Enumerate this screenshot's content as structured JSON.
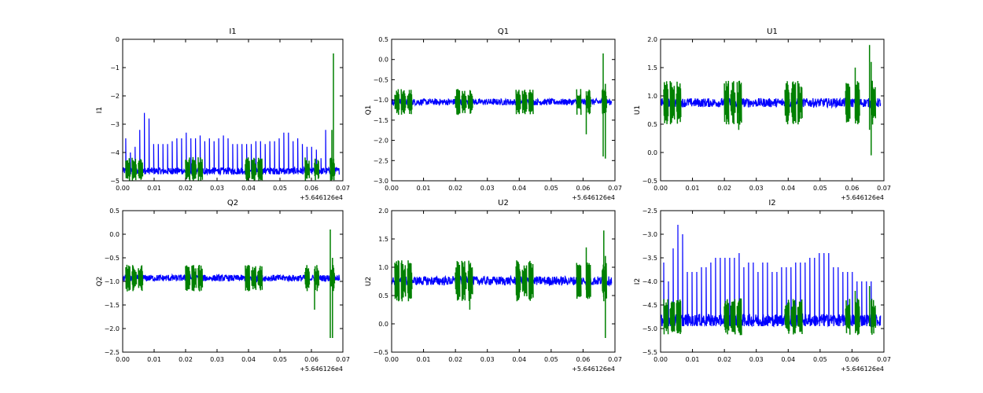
{
  "chart_data": [
    {
      "type": "line",
      "title": "I1",
      "ylabel": "I1",
      "xlabel": "",
      "xlim": [
        0.0,
        0.07
      ],
      "ylim": [
        -5,
        0
      ],
      "xticks": [
        "0.00",
        "0.01",
        "0.02",
        "0.03",
        "0.04",
        "0.05",
        "0.06",
        "0.07"
      ],
      "yticks": [
        "0",
        "−1",
        "−2",
        "−3",
        "−4",
        "−5"
      ],
      "offset_text": "+5.646126e4",
      "series": [
        {
          "name": "blue",
          "color": "#0000ff",
          "baseline": -4.65,
          "noise": 0.12,
          "spike_x": [
            0.001,
            0.0025,
            0.004,
            0.0055,
            0.007,
            0.0085,
            0.01,
            0.0115,
            0.013,
            0.0145,
            0.016,
            0.0175,
            0.019,
            0.0205,
            0.022,
            0.0235,
            0.025,
            0.0265,
            0.028,
            0.0295,
            0.031,
            0.0325,
            0.034,
            0.0355,
            0.037,
            0.0385,
            0.04,
            0.0415,
            0.043,
            0.0445,
            0.046,
            0.0475,
            0.049,
            0.0505,
            0.052,
            0.0535,
            0.055,
            0.0565,
            0.058,
            0.0595,
            0.061,
            0.0625,
            0.064,
            0.0655,
            0.067
          ],
          "spike_y": [
            -3.5,
            -4.0,
            -3.8,
            -3.2,
            -2.6,
            -2.8,
            -3.7,
            -3.7,
            -3.7,
            -3.7,
            -3.6,
            -3.5,
            -3.5,
            -3.3,
            -3.5,
            -3.5,
            -3.4,
            -3.6,
            -3.5,
            -3.6,
            -3.5,
            -3.4,
            -3.5,
            -3.7,
            -3.7,
            -3.7,
            -3.7,
            -3.7,
            -3.6,
            -3.6,
            -3.7,
            -3.6,
            -3.6,
            -3.5,
            -3.3,
            -3.3,
            -3.6,
            -3.5,
            -3.7,
            -3.8,
            -3.8,
            -3.9,
            -4.2,
            -3.2,
            -4.2
          ]
        },
        {
          "name": "green",
          "color": "#008000",
          "baseline": -4.6,
          "clusters": [
            0.001,
            0.003,
            0.005,
            0.02,
            0.022,
            0.024,
            0.039,
            0.041,
            0.043,
            0.058,
            0.061,
            0.066
          ],
          "cluster_amp": 0.35,
          "peaks": [
            {
              "x": 0.0665,
              "min": -4.8,
              "max": -3.2
            },
            {
              "x": 0.067,
              "min": -4.8,
              "max": -0.5
            }
          ]
        }
      ]
    },
    {
      "type": "line",
      "title": "Q1",
      "ylabel": "Q1",
      "xlabel": "",
      "xlim": [
        0.0,
        0.07
      ],
      "ylim": [
        -3.0,
        0.5
      ],
      "xticks": [
        "0.00",
        "0.01",
        "0.02",
        "0.03",
        "0.04",
        "0.05",
        "0.06",
        "0.07"
      ],
      "yticks": [
        "0.5",
        "0.0",
        "−0.5",
        "−1.0",
        "−1.5",
        "−2.0",
        "−2.5",
        "−3.0"
      ],
      "offset_text": "+5.646126e4",
      "series": [
        {
          "name": "blue",
          "color": "#0000ff",
          "baseline": -1.05,
          "noise": 0.08,
          "spike_x": [],
          "spike_y": []
        },
        {
          "name": "green",
          "color": "#008000",
          "baseline": -1.05,
          "clusters": [
            0.001,
            0.003,
            0.005,
            0.02,
            0.022,
            0.024,
            0.039,
            0.041,
            0.043,
            0.058,
            0.061,
            0.066
          ],
          "cluster_amp": 0.25,
          "peaks": [
            {
              "x": 0.061,
              "min": -1.85,
              "max": -0.9
            },
            {
              "x": 0.0663,
              "min": -2.4,
              "max": 0.15
            },
            {
              "x": 0.067,
              "min": -2.45,
              "max": -0.6
            }
          ]
        }
      ]
    },
    {
      "type": "line",
      "title": "U1",
      "ylabel": "U1",
      "xlabel": "",
      "xlim": [
        0.0,
        0.07
      ],
      "ylim": [
        -0.5,
        2.0
      ],
      "xticks": [
        "0.00",
        "0.01",
        "0.02",
        "0.03",
        "0.04",
        "0.05",
        "0.06",
        "0.07"
      ],
      "yticks": [
        "2.0",
        "1.5",
        "1.0",
        "0.5",
        "0.0",
        "−0.5"
      ],
      "offset_text": "+5.646126e4",
      "series": [
        {
          "name": "blue",
          "color": "#0000ff",
          "baseline": 0.88,
          "noise": 0.08,
          "spike_x": [],
          "spike_y": []
        },
        {
          "name": "green",
          "color": "#008000",
          "baseline": 0.88,
          "clusters": [
            0.001,
            0.003,
            0.005,
            0.02,
            0.022,
            0.024,
            0.039,
            0.041,
            0.043,
            0.058,
            0.061,
            0.066
          ],
          "cluster_amp": 0.3,
          "peaks": [
            {
              "x": 0.0245,
              "min": 0.4,
              "max": 1.0
            },
            {
              "x": 0.061,
              "min": 0.6,
              "max": 1.5
            },
            {
              "x": 0.0655,
              "min": 0.4,
              "max": 1.9
            },
            {
              "x": 0.066,
              "min": -0.05,
              "max": 1.6
            }
          ]
        }
      ]
    },
    {
      "type": "line",
      "title": "Q2",
      "ylabel": "Q2",
      "xlabel": "",
      "xlim": [
        0.0,
        0.07
      ],
      "ylim": [
        -2.5,
        0.5
      ],
      "xticks": [
        "0.00",
        "0.01",
        "0.02",
        "0.03",
        "0.04",
        "0.05",
        "0.06",
        "0.07"
      ],
      "yticks": [
        "0.5",
        "0.0",
        "−0.5",
        "−1.0",
        "−1.5",
        "−2.0",
        "−2.5"
      ],
      "offset_text": "+5.646126e4",
      "series": [
        {
          "name": "blue",
          "color": "#0000ff",
          "baseline": -0.93,
          "noise": 0.07,
          "spike_x": [],
          "spike_y": []
        },
        {
          "name": "green",
          "color": "#008000",
          "baseline": -0.93,
          "clusters": [
            0.001,
            0.003,
            0.005,
            0.02,
            0.022,
            0.024,
            0.039,
            0.041,
            0.043,
            0.058,
            0.061,
            0.066
          ],
          "cluster_amp": 0.22,
          "peaks": [
            {
              "x": 0.061,
              "min": -1.6,
              "max": -0.8
            },
            {
              "x": 0.066,
              "min": -2.2,
              "max": 0.1
            },
            {
              "x": 0.0667,
              "min": -2.2,
              "max": -0.5
            }
          ]
        }
      ]
    },
    {
      "type": "line",
      "title": "U2",
      "ylabel": "U2",
      "xlabel": "",
      "xlim": [
        0.0,
        0.07
      ],
      "ylim": [
        -0.5,
        2.0
      ],
      "xticks": [
        "0.00",
        "0.01",
        "0.02",
        "0.03",
        "0.04",
        "0.05",
        "0.06",
        "0.07"
      ],
      "yticks": [
        "2.0",
        "1.5",
        "1.0",
        "0.5",
        "0.0",
        "−0.5"
      ],
      "offset_text": "+5.646126e4",
      "series": [
        {
          "name": "blue",
          "color": "#0000ff",
          "baseline": 0.76,
          "noise": 0.08,
          "spike_x": [],
          "spike_y": []
        },
        {
          "name": "green",
          "color": "#008000",
          "baseline": 0.76,
          "clusters": [
            0.001,
            0.003,
            0.005,
            0.02,
            0.022,
            0.024,
            0.039,
            0.041,
            0.043,
            0.058,
            0.061,
            0.066
          ],
          "cluster_amp": 0.28,
          "peaks": [
            {
              "x": 0.0245,
              "min": 0.25,
              "max": 1.0
            },
            {
              "x": 0.061,
              "min": 0.6,
              "max": 1.35
            },
            {
              "x": 0.0665,
              "min": 0.4,
              "max": 1.65
            },
            {
              "x": 0.067,
              "min": -0.25,
              "max": 1.2
            }
          ]
        }
      ]
    },
    {
      "type": "line",
      "title": "I2",
      "ylabel": "I2",
      "xlabel": "",
      "xlim": [
        0.0,
        0.07
      ],
      "ylim": [
        -5.5,
        -2.5
      ],
      "xticks": [
        "0.00",
        "0.01",
        "0.02",
        "0.03",
        "0.04",
        "0.05",
        "0.06",
        "0.07"
      ],
      "yticks": [
        "−2.5",
        "−3.0",
        "−3.5",
        "−4.0",
        "−4.5",
        "−5.0",
        "−5.5"
      ],
      "offset_text": "+5.646126e4",
      "series": [
        {
          "name": "blue",
          "color": "#0000ff",
          "baseline": -4.82,
          "noise": 0.13,
          "spike_x": [
            0.001,
            0.0025,
            0.004,
            0.0055,
            0.007,
            0.0085,
            0.01,
            0.0115,
            0.013,
            0.0145,
            0.016,
            0.0175,
            0.019,
            0.0205,
            0.022,
            0.0235,
            0.025,
            0.0265,
            0.028,
            0.0295,
            0.031,
            0.0325,
            0.034,
            0.0355,
            0.037,
            0.0385,
            0.04,
            0.0415,
            0.043,
            0.0445,
            0.046,
            0.0475,
            0.049,
            0.0505,
            0.052,
            0.0535,
            0.055,
            0.0565,
            0.058,
            0.0595,
            0.061,
            0.0625,
            0.064,
            0.0655,
            0.067
          ],
          "spike_y": [
            -3.6,
            -4.0,
            -3.3,
            -2.8,
            -3.0,
            -3.8,
            -3.8,
            -3.8,
            -3.7,
            -3.7,
            -3.6,
            -3.5,
            -3.5,
            -3.5,
            -3.5,
            -3.5,
            -3.4,
            -3.7,
            -3.6,
            -3.6,
            -3.8,
            -3.6,
            -3.6,
            -3.8,
            -3.8,
            -3.7,
            -3.7,
            -3.7,
            -3.6,
            -3.6,
            -3.6,
            -3.5,
            -3.5,
            -3.4,
            -3.4,
            -3.4,
            -3.7,
            -3.7,
            -3.8,
            -3.8,
            -3.8,
            -4.0,
            -4.0,
            -4.0,
            -4.0
          ]
        },
        {
          "name": "green",
          "color": "#008000",
          "baseline": -4.75,
          "clusters": [
            0.001,
            0.003,
            0.005,
            0.02,
            0.022,
            0.024,
            0.039,
            0.041,
            0.043,
            0.058,
            0.061,
            0.066
          ],
          "cluster_amp": 0.3,
          "peaks": [
            {
              "x": 0.061,
              "min": -4.9,
              "max": -4.2
            },
            {
              "x": 0.0655,
              "min": -4.95,
              "max": -4.1
            }
          ]
        }
      ]
    }
  ]
}
